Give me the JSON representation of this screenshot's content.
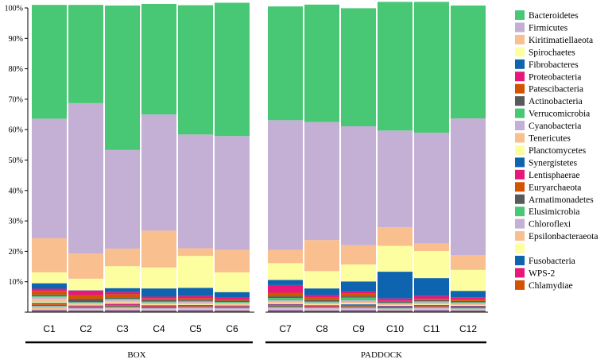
{
  "chart_data": {
    "type": "bar",
    "stacked": true,
    "title": "",
    "xlabel": "",
    "ylabel": "",
    "ylim": [
      0,
      100
    ],
    "yticks": [
      "0%",
      "10%",
      "20%",
      "30%",
      "40%",
      "50%",
      "60%",
      "70%",
      "80%",
      "90%",
      "100%"
    ],
    "groups": [
      {
        "label": "BOX",
        "categories": [
          "C1",
          "C2",
          "C3",
          "C4",
          "C5",
          "C6"
        ]
      },
      {
        "label": "PADDOCK",
        "categories": [
          "C7",
          "C8",
          "C9",
          "C10",
          "C11",
          "C12"
        ]
      }
    ],
    "categories": [
      "C1",
      "C2",
      "C3",
      "C4",
      "C5",
      "C6",
      "C7",
      "C8",
      "C9",
      "C10",
      "C11",
      "C12"
    ],
    "series": [
      {
        "name": "Chlamydiae",
        "color": "#d35400",
        "values": [
          0.2,
          0.2,
          0.2,
          0.2,
          0.2,
          0.2,
          0.2,
          0.2,
          0.2,
          0.2,
          0.2,
          0.2
        ]
      },
      {
        "name": "WPS-2",
        "color": "#e6197a",
        "values": [
          0.3,
          0.2,
          0.3,
          0.2,
          0.3,
          0.2,
          0.3,
          0.2,
          0.3,
          0.2,
          0.3,
          0.2
        ]
      },
      {
        "name": "Fusobacteria",
        "color": "#0f64b0",
        "values": [
          0.2,
          0.2,
          0.2,
          0.2,
          0.2,
          0.2,
          0.2,
          0.2,
          0.2,
          0.2,
          0.2,
          0.2
        ]
      },
      {
        "name": "",
        "color": "#fdfea0",
        "values": [
          0.1,
          0.1,
          0.1,
          0.1,
          0.1,
          0.1,
          0.1,
          0.1,
          0.1,
          0.1,
          0.1,
          0.1
        ]
      },
      {
        "name": "Epsilonbacteraeota",
        "color": "#f9bf8f",
        "values": [
          0.6,
          0.3,
          0.4,
          0.3,
          0.3,
          0.3,
          0.3,
          0.4,
          0.2,
          0.2,
          0.3,
          0.2
        ]
      },
      {
        "name": "Chloroflexi",
        "color": "#c5b0d5",
        "values": [
          0.5,
          0.3,
          0.3,
          0.3,
          0.3,
          0.3,
          0.4,
          0.3,
          0.4,
          0.3,
          0.3,
          0.3
        ]
      },
      {
        "name": "Elusimicrobia",
        "color": "#48c774",
        "values": [
          0.2,
          0.1,
          0.2,
          0.1,
          0.2,
          0.1,
          0.2,
          0.1,
          0.2,
          0.1,
          0.2,
          0.1
        ]
      },
      {
        "name": "Armatimonadetes",
        "color": "#595959",
        "values": [
          0.3,
          0.2,
          0.3,
          0.3,
          0.2,
          0.2,
          0.3,
          0.2,
          0.3,
          0.2,
          0.2,
          0.2
        ]
      },
      {
        "name": "Euryarchaeota",
        "color": "#d35400",
        "values": [
          0.3,
          0.2,
          0.3,
          0.2,
          0.2,
          0.2,
          0.3,
          0.2,
          0.3,
          0.2,
          0.2,
          0.2
        ]
      },
      {
        "name": "Lentisphaerae",
        "color": "#e6197a",
        "values": [
          0.2,
          0.2,
          0.3,
          0.2,
          0.2,
          0.2,
          0.2,
          0.2,
          0.2,
          0.2,
          0.2,
          0.2
        ]
      },
      {
        "name": "Synergistetes",
        "color": "#0f64b0",
        "values": [
          0.2,
          0.2,
          0.2,
          0.2,
          0.2,
          0.2,
          0.2,
          0.2,
          0.2,
          0.2,
          0.2,
          0.2
        ]
      },
      {
        "name": "Planctomycetes",
        "color": "#fdfea0",
        "values": [
          0.3,
          0.2,
          0.3,
          0.2,
          0.2,
          0.2,
          0.3,
          0.2,
          0.3,
          0.2,
          0.2,
          0.2
        ]
      },
      {
        "name": "Tenericutes",
        "color": "#f9bf8f",
        "values": [
          1.0,
          0.4,
          0.6,
          0.4,
          0.5,
          0.4,
          0.5,
          0.4,
          0.5,
          0.3,
          0.4,
          0.4
        ]
      },
      {
        "name": "Cyanobacteria",
        "color": "#c5b0d5",
        "values": [
          0.6,
          0.3,
          0.4,
          0.3,
          0.3,
          0.3,
          0.4,
          0.3,
          0.5,
          0.3,
          0.3,
          0.3
        ]
      },
      {
        "name": "Verrucomicrobia",
        "color": "#48c774",
        "values": [
          0.3,
          0.2,
          0.3,
          0.3,
          0.3,
          0.3,
          0.8,
          0.3,
          0.9,
          0.2,
          0.3,
          0.3
        ]
      },
      {
        "name": "Actinobacteria",
        "color": "#595959",
        "values": [
          0.5,
          1.0,
          0.5,
          0.5,
          0.4,
          0.4,
          0.5,
          0.5,
          0.4,
          0.3,
          0.4,
          0.4
        ]
      },
      {
        "name": "Patescibacteria",
        "color": "#d35400",
        "values": [
          1.2,
          1.3,
          1.0,
          0.5,
          0.5,
          0.4,
          1.2,
          0.8,
          0.9,
          0.3,
          0.4,
          0.5
        ]
      },
      {
        "name": "Proteobacteria",
        "color": "#e6197a",
        "values": [
          0.7,
          1.5,
          0.7,
          0.6,
          0.7,
          0.6,
          2.5,
          0.8,
          0.7,
          0.8,
          0.9,
          0.7
        ]
      },
      {
        "name": "Fibrobacteres",
        "color": "#0f64b0",
        "values": [
          1.8,
          0.1,
          1.3,
          2.7,
          2.7,
          1.8,
          1.7,
          2.2,
          3.3,
          8.8,
          5.9,
          2.1
        ]
      },
      {
        "name": "Spirochaetes",
        "color": "#fdfea0",
        "values": [
          3.6,
          3.8,
          7.2,
          6.9,
          10.5,
          6.5,
          5.5,
          5.7,
          5.6,
          8.5,
          8.9,
          6.9
        ]
      },
      {
        "name": "Kiritimatiellaeota",
        "color": "#f9bf8f",
        "values": [
          11.2,
          8.3,
          5.8,
          12.1,
          2.5,
          7.4,
          4.4,
          10.2,
          6.3,
          6.1,
          2.5,
          4.9
        ]
      },
      {
        "name": "Firmicutes",
        "color": "#c5b0d5",
        "values": [
          39.3,
          49.4,
          32.4,
          38.2,
          37.4,
          37.4,
          42.6,
          38.8,
          39.1,
          31.8,
          36.4,
          44.9
        ]
      },
      {
        "name": "Bacteroidetes",
        "color": "#48c774",
        "values": [
          37.4,
          32.3,
          47.5,
          36.3,
          42.5,
          43.8,
          37.4,
          38.6,
          38.8,
          42.3,
          43.0,
          37.1
        ]
      }
    ],
    "legend": {
      "position": "right",
      "entries": [
        {
          "label": "Bacteroidetes",
          "color": "#48c774"
        },
        {
          "label": "Firmicutes",
          "color": "#c5b0d5"
        },
        {
          "label": "Kiritimatiellaeota",
          "color": "#f9bf8f"
        },
        {
          "label": "Spirochaetes",
          "color": "#fdfea0"
        },
        {
          "label": "Fibrobacteres",
          "color": "#0f64b0"
        },
        {
          "label": "Proteobacteria",
          "color": "#e6197a"
        },
        {
          "label": "Patescibacteria",
          "color": "#d35400"
        },
        {
          "label": "Actinobacteria",
          "color": "#595959"
        },
        {
          "label": "Verrucomicrobia",
          "color": "#48c774"
        },
        {
          "label": "Cyanobacteria",
          "color": "#c5b0d5"
        },
        {
          "label": "Tenericutes",
          "color": "#f9bf8f"
        },
        {
          "label": "Planctomycetes",
          "color": "#fdfea0"
        },
        {
          "label": "Synergistetes",
          "color": "#0f64b0"
        },
        {
          "label": "Lentisphaerae",
          "color": "#e6197a"
        },
        {
          "label": "Euryarchaeota",
          "color": "#d35400"
        },
        {
          "label": "Armatimonadetes",
          "color": "#595959"
        },
        {
          "label": "Elusimicrobia",
          "color": "#48c774"
        },
        {
          "label": "Chloroflexi",
          "color": "#c5b0d5"
        },
        {
          "label": "Epsilonbacteraeota",
          "color": "#f9bf8f"
        },
        {
          "label": "",
          "color": "#fdfea0"
        },
        {
          "label": "Fusobacteria",
          "color": "#0f64b0"
        },
        {
          "label": "WPS-2",
          "color": "#e6197a"
        },
        {
          "label": "Chlamydiae",
          "color": "#d35400"
        }
      ]
    }
  }
}
